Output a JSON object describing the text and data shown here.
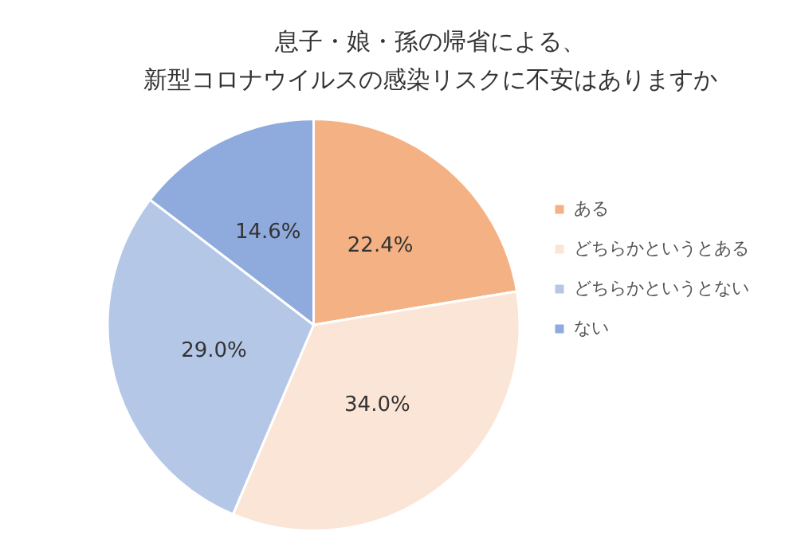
{
  "chart_data": {
    "type": "pie",
    "title": "息子・娘・孫の帰省による、",
    "subtitle": "新型コロナウイルスの感染リスクに不安はありますか",
    "categories": [
      "ある",
      "どちらかというとある",
      "どちらかというとない",
      "ない"
    ],
    "values": [
      22.4,
      34.0,
      29.0,
      14.6
    ],
    "colors": [
      "#f4b183",
      "#fbe5d6",
      "#b4c7e7",
      "#8faadc"
    ],
    "value_labels": [
      "22.4%",
      "34.0%",
      "29.0%",
      "14.6%"
    ],
    "legend": "right"
  }
}
